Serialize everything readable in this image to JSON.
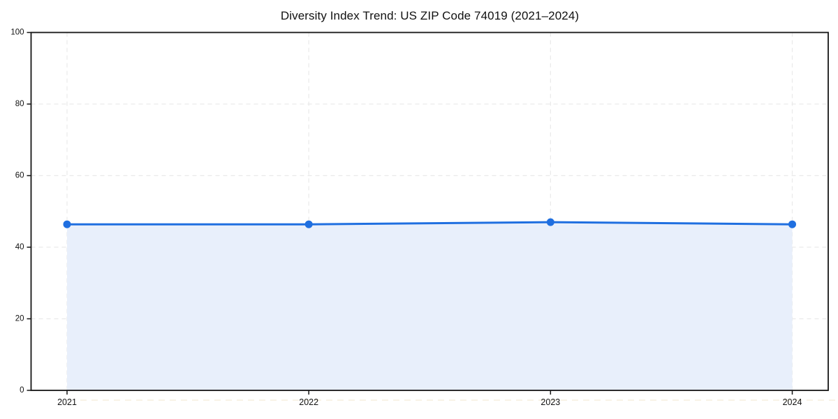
{
  "figure": {
    "background_color": "#ffffff"
  },
  "chart_data": {
    "type": "line",
    "title": "Diversity Index Trend: US ZIP Code 74019 (2021–2024)",
    "x": [
      "2021",
      "2022",
      "2023",
      "2024"
    ],
    "series": [
      {
        "name": "Diversity Index",
        "values": [
          46.4,
          46.4,
          47.0,
          46.4
        ]
      }
    ],
    "xlabel": "",
    "ylabel": "",
    "ylim": [
      0,
      100
    ],
    "yticks": [
      0,
      20,
      40,
      60,
      80,
      100
    ],
    "grid": "dashed both-axes",
    "legend_position": "none",
    "area_fill": true,
    "style": {
      "line_color": "#1f6fe0",
      "marker": "circle",
      "marker_radius": 5.5,
      "line_width": 3,
      "area_fill_color": "#e8effb",
      "grid_color": "#e9e9e9",
      "spine_color": "#151515",
      "text_color": "#111111",
      "artifact_dash_color": "#f5efdd"
    }
  }
}
